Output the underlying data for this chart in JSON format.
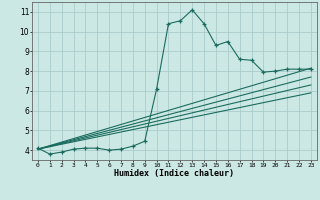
{
  "title": "",
  "xlabel": "Humidex (Indice chaleur)",
  "bg_color": "#cce8e4",
  "grid_color": "#aaccca",
  "line_color": "#1a6b5e",
  "xlim": [
    -0.5,
    23.5
  ],
  "ylim": [
    3.5,
    11.5
  ],
  "xticks": [
    0,
    1,
    2,
    3,
    4,
    5,
    6,
    7,
    8,
    9,
    10,
    11,
    12,
    13,
    14,
    15,
    16,
    17,
    18,
    19,
    20,
    21,
    22,
    23
  ],
  "yticks": [
    4,
    5,
    6,
    7,
    8,
    9,
    10,
    11
  ],
  "main_series": {
    "x": [
      0,
      1,
      2,
      3,
      4,
      5,
      6,
      7,
      8,
      9,
      10,
      11,
      12,
      13,
      14,
      15,
      16,
      17,
      18,
      19,
      20,
      21,
      22,
      23
    ],
    "y": [
      4.1,
      3.8,
      3.9,
      4.05,
      4.1,
      4.1,
      4.0,
      4.05,
      4.2,
      4.45,
      7.1,
      10.4,
      10.55,
      11.1,
      10.4,
      9.3,
      9.5,
      8.6,
      8.55,
      7.95,
      8.0,
      8.1,
      8.1,
      8.1
    ]
  },
  "trend_lines": [
    {
      "x": [
        0,
        23
      ],
      "y": [
        4.05,
        8.15
      ]
    },
    {
      "x": [
        0,
        23
      ],
      "y": [
        4.05,
        7.7
      ]
    },
    {
      "x": [
        0,
        23
      ],
      "y": [
        4.05,
        7.3
      ]
    },
    {
      "x": [
        0,
        23
      ],
      "y": [
        4.05,
        6.9
      ]
    }
  ]
}
